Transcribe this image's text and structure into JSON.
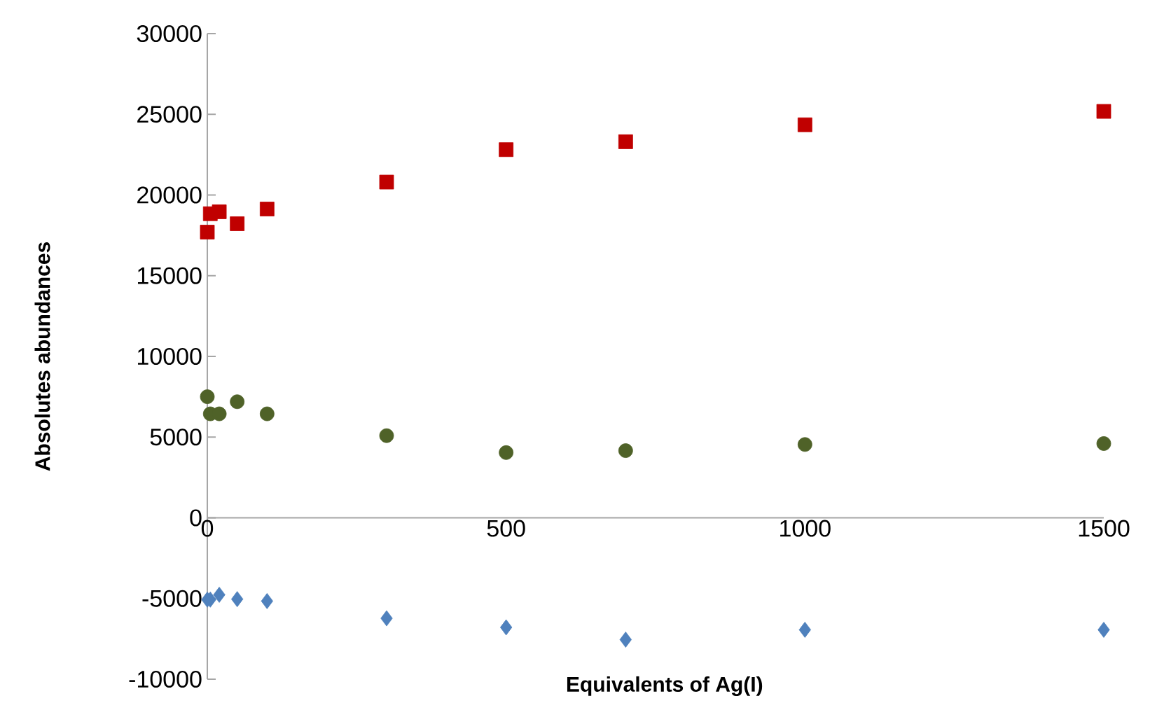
{
  "chart_data": {
    "type": "scatter",
    "xlabel": "Equivalents of Ag(I)",
    "ylabel": "Absolutes abundances",
    "x": [
      0,
      5,
      20,
      50,
      100,
      300,
      500,
      700,
      1000,
      1500
    ],
    "xlim": [
      0,
      1500
    ],
    "xticks": [
      0,
      500,
      1000,
      1500
    ],
    "ylim": [
      -10000,
      30000
    ],
    "yticks": [
      -10000,
      -5000,
      0,
      5000,
      10000,
      15000,
      20000,
      25000,
      30000
    ],
    "grid": false,
    "series": [
      {
        "color": "#c00000",
        "marker": "square",
        "values": [
          17700,
          18840,
          18960,
          18220,
          19130,
          20800,
          22810,
          23300,
          24350,
          25180
        ]
      },
      {
        "color": "#4f6228",
        "marker": "circle",
        "values": [
          7500,
          6440,
          6440,
          7190,
          6440,
          5090,
          4040,
          4160,
          4540,
          4600
        ]
      },
      {
        "color": "#4f81bd",
        "marker": "diamond",
        "values": [
          -5070,
          -5070,
          -4770,
          -5040,
          -5160,
          -6230,
          -6790,
          -7550,
          -6940,
          -6940
        ]
      }
    ]
  }
}
